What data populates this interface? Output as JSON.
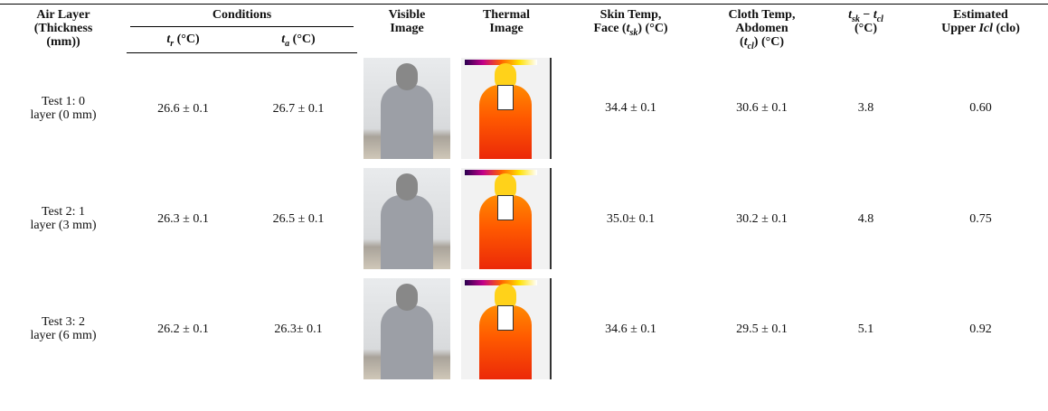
{
  "header": {
    "air_layer": [
      "Air Layer",
      "(Thickness",
      "(mm))"
    ],
    "conditions": "Conditions",
    "tr": [
      "t",
      "r",
      " (°C)"
    ],
    "ta": [
      "t",
      "a",
      " (°C)"
    ],
    "visible": [
      "Visible",
      "Image"
    ],
    "thermal": [
      "Thermal",
      "Image"
    ],
    "skin": [
      "Skin Temp,",
      "Face (",
      "t",
      "sk",
      ") (°C)"
    ],
    "cloth": [
      "Cloth Temp,",
      "Abdomen",
      "(",
      "t",
      "cl",
      ") (°C)"
    ],
    "diff": [
      "t",
      "sk",
      " − ",
      "t",
      "cl",
      "(°C)"
    ],
    "icl": [
      "Estimated",
      "Upper ",
      "Icl",
      " (clo)"
    ]
  },
  "rows": [
    {
      "label": [
        "Test 1: 0",
        "layer (0 mm)"
      ],
      "tr": "26.6 ± 0.1",
      "ta": "26.7 ± 0.1",
      "skin": "34.4 ± 0.1",
      "cloth": "30.6 ± 0.1",
      "diff": "3.8",
      "icl": "0.60"
    },
    {
      "label": [
        "Test 2: 1",
        "layer (3 mm)"
      ],
      "tr": "26.3 ± 0.1",
      "ta": "26.5 ± 0.1",
      "skin": "35.0± 0.1",
      "cloth": "30.2 ± 0.1",
      "diff": "4.8",
      "icl": "0.75"
    },
    {
      "label": [
        "Test 3: 2",
        "layer (6 mm)"
      ],
      "tr": "26.2 ± 0.1",
      "ta": "26.3± 0.1",
      "skin": "34.6 ± 0.1",
      "cloth": "29.5 ± 0.1",
      "diff": "5.1",
      "icl": "0.92"
    }
  ]
}
